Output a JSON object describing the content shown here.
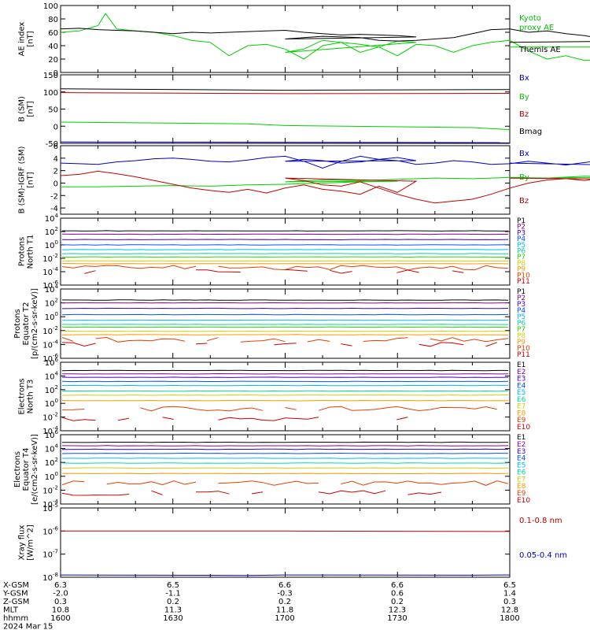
{
  "colors": {
    "black": "#000000",
    "green": "#00d000",
    "blue": "#0000c0",
    "red": "#c00000",
    "bgreen": "#00c000",
    "bred": "#b00000"
  },
  "palette11": [
    "#000000",
    "#8a0090",
    "#3c00c8",
    "#0050ff",
    "#00b8ff",
    "#00d8a0",
    "#30d800",
    "#d0d000",
    "#ff9800",
    "#e04000",
    "#c80000"
  ],
  "palette10": [
    "#000000",
    "#8a0090",
    "#3c00c8",
    "#0050ff",
    "#00b8ff",
    "#00d8a0",
    "#d0d000",
    "#ff9800",
    "#e04000",
    "#c80000"
  ],
  "chart_data": [
    {
      "id": "ae",
      "type": "line",
      "ylabel": "AE index\n[nT]",
      "ylim": [
        0,
        100
      ],
      "yticks": [
        0,
        20,
        40,
        60,
        80,
        100
      ],
      "ytick_labels": [
        "0",
        "20",
        "40",
        "60",
        "80",
        "100"
      ],
      "xlim": [
        1600,
        1800
      ],
      "series": [
        {
          "name": "Kyoto\nproxy AE",
          "color": "green",
          "x": [
            1600,
            1605,
            1610,
            1612,
            1615,
            1620,
            1625,
            1630,
            1635,
            1640,
            1645,
            1650,
            1655,
            1660,
            1665,
            1670,
            1675,
            1680,
            1685,
            1690,
            1695,
            1700,
            1705,
            1710,
            1715,
            1720,
            1725,
            1730,
            1735,
            1740,
            1745,
            1750,
            1755,
            1760,
            1765,
            1770,
            1775,
            1780,
            1785,
            1790,
            1795,
            1800
          ],
          "y": [
            60,
            62,
            70,
            88,
            65,
            62,
            60,
            55,
            48,
            45,
            25,
            40,
            42,
            35,
            20,
            40,
            45,
            42,
            38,
            47,
            45,
            30,
            35,
            48,
            45,
            30,
            38,
            25,
            42,
            40,
            30,
            40,
            45,
            48,
            32,
            20,
            25,
            18,
            20,
            22,
            38,
            38
          ]
        },
        {
          "name": "Themis AE",
          "color": "black",
          "x": [
            1600,
            1605,
            1610,
            1615,
            1620,
            1625,
            1630,
            1635,
            1640,
            1645,
            1650,
            1655,
            1660,
            1665,
            1670,
            1675,
            1680,
            1685,
            1690,
            1695,
            1700,
            1705,
            1710,
            1715,
            1720,
            1725,
            1730,
            1735,
            1740,
            1745,
            1750,
            1755,
            1760,
            1765,
            1770,
            1775,
            1780,
            1785,
            1790,
            1795,
            1800
          ],
          "y": [
            65,
            66,
            64,
            63,
            62,
            60,
            58,
            60,
            59,
            60,
            61,
            62,
            63,
            60,
            58,
            56,
            57,
            56,
            55,
            53,
            50,
            52,
            54,
            53,
            52,
            48,
            47,
            48,
            50,
            52,
            58,
            64,
            65,
            60,
            62,
            58,
            55,
            50,
            45,
            47,
            45
          ]
        }
      ]
    },
    {
      "id": "bsm",
      "type": "line",
      "ylabel": "B (SM)\n[nT]",
      "ylim": [
        -50,
        150
      ],
      "yticks": [
        -50,
        0,
        50,
        100,
        150
      ],
      "ytick_labels": [
        "-50",
        "0",
        "50",
        "100",
        "150"
      ],
      "xlim": [
        1600,
        1800
      ],
      "series": [
        {
          "name": "Bx",
          "color": "blue",
          "x": [
            1600,
            1800
          ],
          "y": [
            -46,
            -48
          ]
        },
        {
          "name": "By",
          "color": "green",
          "x": [
            1600,
            1650,
            1700,
            1750,
            1800
          ],
          "y": [
            12,
            7,
            2,
            -4,
            -10
          ]
        },
        {
          "name": "Bz",
          "color": "red",
          "x": [
            1600,
            1700,
            1800
          ],
          "y": [
            98,
            95,
            96
          ]
        },
        {
          "name": "Bmag",
          "color": "black",
          "x": [
            1600,
            1700,
            1800
          ],
          "y": [
            109,
            105,
            107
          ]
        }
      ]
    },
    {
      "id": "bigrf",
      "type": "line",
      "ylabel": "B (SM)-IGRF (SM)\n[nT]",
      "ylim": [
        -5,
        6
      ],
      "yticks": [
        -4,
        -2,
        0,
        2,
        4,
        6
      ],
      "ytick_labels": [
        "-4",
        "-2",
        "0",
        "2",
        "4",
        "6"
      ],
      "xlim": [
        1600,
        1800
      ],
      "series": [
        {
          "name": "Bx",
          "color": "blue",
          "x": [
            1600,
            1605,
            1610,
            1615,
            1620,
            1625,
            1630,
            1635,
            1640,
            1645,
            1650,
            1655,
            1660,
            1665,
            1670,
            1675,
            1680,
            1685,
            1690,
            1695,
            1700,
            1705,
            1710,
            1715,
            1720,
            1725,
            1730,
            1735,
            1740,
            1745,
            1750,
            1755,
            1760,
            1765,
            1770,
            1775,
            1780,
            1785,
            1790,
            1795,
            1800
          ],
          "y": [
            3.2,
            3.1,
            3.0,
            3.4,
            3.6,
            3.9,
            4.0,
            3.8,
            3.5,
            3.4,
            3.7,
            4.1,
            4.3,
            3.5,
            2.4,
            3.5,
            4.3,
            3.8,
            4.1,
            3.6,
            3.5,
            3.8,
            3.6,
            3.2,
            3.4,
            3.8,
            3.6,
            3.0,
            3.2,
            3.6,
            3.4,
            3.0,
            3.1,
            3.5,
            3.2,
            2.9,
            3.3,
            3.7,
            3.0,
            2.8,
            3.2
          ]
        },
        {
          "name": "By",
          "color": "green",
          "x": [
            1600,
            1610,
            1620,
            1630,
            1640,
            1650,
            1660,
            1670,
            1680,
            1690,
            1700,
            1710,
            1720,
            1730,
            1740,
            1750,
            1760,
            1770,
            1780,
            1790,
            1800
          ],
          "y": [
            -0.6,
            -0.6,
            -0.5,
            -0.4,
            -0.5,
            -0.3,
            -0.2,
            0.0,
            0.2,
            0.3,
            0.2,
            0.5,
            0.4,
            0.6,
            0.8,
            0.7,
            0.9,
            0.8,
            1.1,
            0.9,
            0.8
          ]
        },
        {
          "name": "Bz",
          "color": "red",
          "x": [
            1600,
            1605,
            1610,
            1615,
            1620,
            1625,
            1630,
            1635,
            1640,
            1645,
            1650,
            1655,
            1660,
            1665,
            1670,
            1675,
            1680,
            1685,
            1690,
            1695,
            1700,
            1705,
            1710,
            1715,
            1720,
            1725,
            1730,
            1735,
            1740,
            1745,
            1750,
            1755,
            1760,
            1765,
            1770,
            1775,
            1780,
            1785,
            1790,
            1795,
            1800
          ],
          "y": [
            1.2,
            1.4,
            1.9,
            1.5,
            1.0,
            0.4,
            -0.2,
            -0.8,
            -1.2,
            -1.5,
            -1.0,
            -1.6,
            -0.8,
            -0.3,
            -1.0,
            -1.3,
            -1.8,
            -0.5,
            -1.5,
            0.3,
            0.8,
            0.4,
            -0.3,
            -0.5,
            0.2,
            -0.8,
            -1.8,
            -2.6,
            -3.2,
            -2.9,
            -2.6,
            -1.8,
            -0.8,
            0.0,
            0.5,
            0.7,
            0.4,
            0.9,
            1.0,
            0.6,
            0.8
          ]
        }
      ]
    },
    {
      "id": "pn",
      "type": "line",
      "log": true,
      "ylabel": "Protons\nNorth T1",
      "ylim": [
        -6,
        4
      ],
      "yticks": [
        -6,
        -4,
        -2,
        0,
        2,
        4
      ],
      "ytick_labels": [
        "10-6",
        "10-4",
        "10-2",
        "10^0",
        "10^2",
        "10^4"
      ],
      "channel_levels": [
        2.1,
        1.6,
        0.8,
        0.0,
        -0.7,
        -1.3,
        -1.8,
        -2.4,
        -2.8,
        -3.4,
        -4.0
      ],
      "channel_labels": [
        "P1",
        "P2",
        "P3",
        "P4",
        "P5",
        "P6",
        "P7",
        "P8",
        "P9",
        "P10",
        "P11"
      ],
      "palette": "palette11"
    },
    {
      "id": "pe",
      "type": "line",
      "log": true,
      "ylabel": "Protons\nEquator T2\n[p/(cm2-s-sr-keV)]",
      "ylim": [
        -6,
        4
      ],
      "yticks": [
        -6,
        -4,
        -2,
        0,
        2,
        4
      ],
      "ytick_labels": [
        "10-6",
        "10-4",
        "10-2",
        "10^0",
        "10^2",
        "10^4"
      ],
      "channel_levels": [
        2.4,
        2.0,
        1.2,
        0.3,
        -0.5,
        -1.1,
        -1.5,
        -2.1,
        -2.6,
        -3.3,
        -4.0
      ],
      "channel_labels": [
        "P1",
        "P2",
        "P3",
        "P4",
        "P5",
        "P6",
        "P7",
        "P8",
        "P9",
        "P10",
        "P11"
      ],
      "palette": "palette11"
    },
    {
      "id": "en",
      "type": "line",
      "log": true,
      "ylabel": "Electrons\nNorth T3",
      "ylim": [
        -4,
        6
      ],
      "yticks": [
        -4,
        -2,
        0,
        2,
        4,
        6
      ],
      "ytick_labels": [
        "10-4",
        "10-2",
        "10^0",
        "10^2",
        "10^4",
        "10^6"
      ],
      "channel_levels": [
        4.8,
        4.3,
        3.8,
        3.2,
        2.6,
        1.8,
        1.2,
        0.4,
        -0.8,
        -2.2
      ],
      "channel_labels": [
        "E1",
        "E2",
        "E3",
        "E4",
        "E5",
        "E6",
        "E7",
        "E8",
        "E9",
        "E10"
      ],
      "palette": "palette10"
    },
    {
      "id": "ee",
      "type": "line",
      "log": true,
      "ylabel": "Electrons\nEquator T4\n[e/(cm2-s-sr-keV)]",
      "ylim": [
        -4,
        6
      ],
      "yticks": [
        -4,
        -2,
        0,
        2,
        4,
        6
      ],
      "ytick_labels": [
        "10-4",
        "10-2",
        "10^0",
        "10^2",
        "10^4",
        "10^6"
      ],
      "channel_levels": [
        4.9,
        4.4,
        3.9,
        3.3,
        2.6,
        1.9,
        1.2,
        0.4,
        -1.0,
        -2.4
      ],
      "channel_labels": [
        "E1",
        "E2",
        "E3",
        "E4",
        "E5",
        "E6",
        "E7",
        "E8",
        "E9",
        "E10"
      ],
      "palette": "palette10"
    },
    {
      "id": "xray",
      "type": "line",
      "log": true,
      "ylabel": "Xray flux\n[W/m^2]",
      "ylim": [
        -8,
        -5
      ],
      "yticks": [
        -8,
        -7,
        -6,
        -5
      ],
      "ytick_labels": [
        "10-8",
        "10-7",
        "10-6",
        "10-5"
      ],
      "xlim": [
        1600,
        1800
      ],
      "series": [
        {
          "name": "0.1-0.8 nm",
          "color": "red",
          "x": [
            1600,
            1700,
            1800
          ],
          "y": [
            -6.0,
            -6.0,
            -6.02
          ]
        },
        {
          "name": "0.05-0.4 nm",
          "color": "blue",
          "x": [
            1600,
            1650,
            1700,
            1750,
            1800
          ],
          "y": [
            -7.9,
            -7.92,
            -7.9,
            -7.91,
            -7.9
          ]
        }
      ]
    }
  ],
  "ephemeris": {
    "rows": [
      {
        "label": "X-GSM",
        "values": [
          "6.3",
          "6.5",
          "6.6",
          "6.6",
          "6.5"
        ]
      },
      {
        "label": "Y-GSM",
        "values": [
          "-2.0",
          "-1.1",
          "-0.3",
          "0.6",
          "1.4"
        ]
      },
      {
        "label": "Z-GSM",
        "values": [
          "0.3",
          "0.2",
          "0.2",
          "0.2",
          "0.3"
        ]
      },
      {
        "label": "MLT",
        "values": [
          "10.8",
          "11.3",
          "11.8",
          "12.3",
          "12.8"
        ]
      },
      {
        "label": "hhmm",
        "values": [
          "1600",
          "1630",
          "1700",
          "1730",
          "1800"
        ]
      }
    ],
    "date": "2024 Mar 15"
  }
}
